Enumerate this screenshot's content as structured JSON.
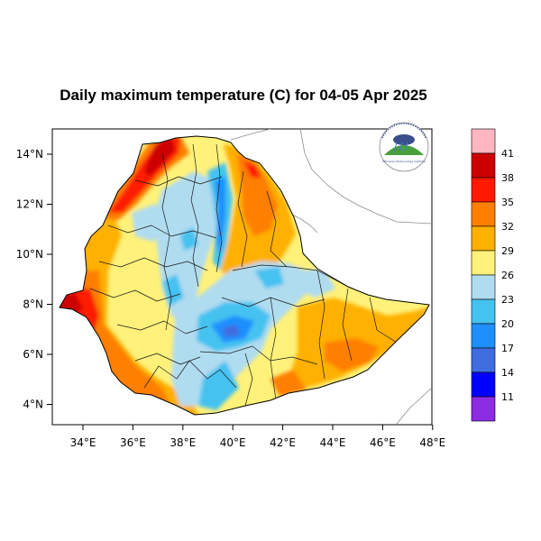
{
  "title": "Daily maximum temperature (C) for 04-05 Apr 2025",
  "x_axis": {
    "ticks": [
      "34°E",
      "36°E",
      "38°E",
      "40°E",
      "42°E",
      "44°E",
      "46°E",
      "48°E"
    ]
  },
  "y_axis": {
    "ticks": [
      "14°N",
      "12°N",
      "10°N",
      "8°N",
      "6°N",
      "4°N"
    ]
  },
  "colorbar": {
    "labels": [
      "41",
      "38",
      "35",
      "32",
      "29",
      "26",
      "23",
      "20",
      "17",
      "14",
      "11"
    ],
    "colors": [
      "#ffb6c1",
      "#cd0000",
      "#ff1a00",
      "#ff7f00",
      "#ffb000",
      "#fff17a",
      "#b0dcf0",
      "#44c2f0",
      "#1e8fff",
      "#3f6cdf",
      "#0000ff",
      "#8b2be2"
    ]
  },
  "logo": {
    "text": "Ethiopian Meteorology Institute"
  }
}
